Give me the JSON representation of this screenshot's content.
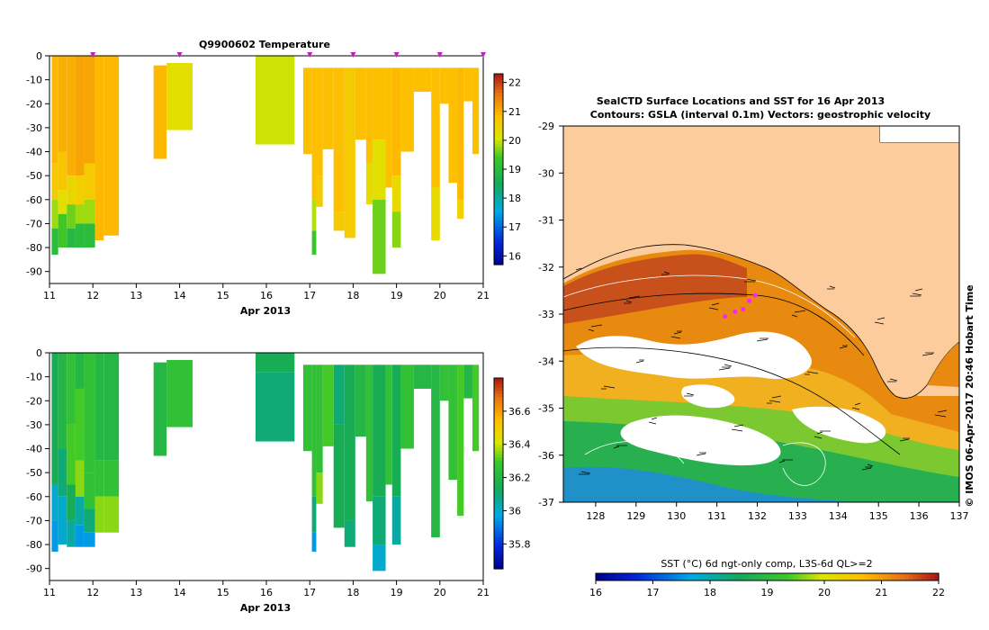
{
  "chart_data": [
    {
      "type": "heatmap",
      "title": "Q9900602  Temperature",
      "xlabel": "Apr 2013",
      "ylabel": "",
      "xlim": [
        11,
        21
      ],
      "ylim": [
        -95,
        0
      ],
      "xticks": [
        "11",
        "12",
        "13",
        "14",
        "15",
        "16",
        "17",
        "18",
        "19",
        "20",
        "21"
      ],
      "yticks": [
        "0",
        "-10",
        "-20",
        "-30",
        "-40",
        "-50",
        "-60",
        "-70",
        "-80",
        "-90"
      ],
      "colorbar": {
        "min": 15.7,
        "max": 22.3,
        "ticks": [
          "22",
          "21",
          "20",
          "19",
          "18",
          "17",
          "16"
        ]
      },
      "markers_x": [
        12.0,
        14.0,
        17.0,
        18.0,
        19.0,
        20.0,
        21.0
      ],
      "profiles": [
        {
          "x0": 11.05,
          "x1": 11.2,
          "bottom": -83,
          "layers": [
            [
              0,
              -45,
              20.9
            ],
            [
              -45,
              -60,
              20.6
            ],
            [
              -60,
              -72,
              19.8
            ],
            [
              -72,
              -83,
              19.0
            ]
          ]
        },
        {
          "x0": 11.2,
          "x1": 11.4,
          "bottom": -80,
          "layers": [
            [
              0,
              -40,
              21.0
            ],
            [
              -40,
              -56,
              20.7
            ],
            [
              -56,
              -66,
              20.2
            ],
            [
              -66,
              -80,
              19.4
            ]
          ]
        },
        {
          "x0": 11.4,
          "x1": 11.6,
          "bottom": -80,
          "layers": [
            [
              0,
              -50,
              21.0
            ],
            [
              -50,
              -62,
              20.4
            ],
            [
              -62,
              -72,
              19.6
            ],
            [
              -72,
              -80,
              18.9
            ]
          ]
        },
        {
          "x0": 11.6,
          "x1": 11.8,
          "bottom": -80,
          "layers": [
            [
              0,
              -50,
              21.1
            ],
            [
              -50,
              -62,
              20.5
            ],
            [
              -62,
              -70,
              19.8
            ],
            [
              -70,
              -80,
              19.0
            ]
          ]
        },
        {
          "x0": 11.8,
          "x1": 12.05,
          "bottom": -80,
          "layers": [
            [
              0,
              -45,
              21.1
            ],
            [
              -45,
              -60,
              20.6
            ],
            [
              -60,
              -70,
              19.8
            ],
            [
              -70,
              -80,
              19.0
            ]
          ]
        },
        {
          "x0": 12.05,
          "x1": 12.25,
          "bottom": -77,
          "layers": [
            [
              0,
              -77,
              20.9
            ]
          ]
        },
        {
          "x0": 12.25,
          "x1": 12.6,
          "bottom": -75,
          "layers": [
            [
              0,
              -75,
              20.9
            ]
          ]
        },
        {
          "x0": 13.4,
          "x1": 13.7,
          "bottom": -43,
          "layers": [
            [
              -4,
              -43,
              20.9
            ]
          ]
        },
        {
          "x0": 13.7,
          "x1": 14.3,
          "bottom": -31,
          "layers": [
            [
              -3,
              -31,
              20.2
            ]
          ]
        },
        {
          "x0": 15.75,
          "x1": 16.65,
          "bottom": -37,
          "layers": [
            [
              0,
              -37,
              20.0
            ]
          ]
        },
        {
          "x0": 16.85,
          "x1": 17.05,
          "bottom": -41,
          "layers": [
            [
              -5,
              -41,
              20.8
            ]
          ]
        },
        {
          "x0": 17.05,
          "x1": 17.15,
          "bottom": -83,
          "layers": [
            [
              -5,
              -60,
              20.8
            ],
            [
              -60,
              -73,
              19.9
            ],
            [
              -73,
              -83,
              19.3
            ]
          ]
        },
        {
          "x0": 17.15,
          "x1": 17.3,
          "bottom": -63,
          "layers": [
            [
              -5,
              -50,
              20.8
            ],
            [
              -50,
              -63,
              20.6
            ]
          ]
        },
        {
          "x0": 17.3,
          "x1": 17.55,
          "bottom": -39,
          "layers": [
            [
              -5,
              -39,
              20.8
            ]
          ]
        },
        {
          "x0": 17.55,
          "x1": 17.8,
          "bottom": -73,
          "layers": [
            [
              -5,
              -65,
              20.8
            ],
            [
              -65,
              -73,
              20.6
            ]
          ]
        },
        {
          "x0": 17.8,
          "x1": 18.05,
          "bottom": -76,
          "layers": [
            [
              -5,
              -76,
              20.6
            ]
          ]
        },
        {
          "x0": 18.05,
          "x1": 18.3,
          "bottom": -35,
          "layers": [
            [
              -5,
              -35,
              20.8
            ]
          ]
        },
        {
          "x0": 18.3,
          "x1": 18.45,
          "bottom": -62,
          "layers": [
            [
              -5,
              -45,
              20.8
            ],
            [
              -45,
              -62,
              20.3
            ]
          ]
        },
        {
          "x0": 18.45,
          "x1": 18.75,
          "bottom": -91,
          "layers": [
            [
              -5,
              -35,
              20.8
            ],
            [
              -35,
              -60,
              20.2
            ],
            [
              -60,
              -91,
              19.6
            ]
          ]
        },
        {
          "x0": 18.75,
          "x1": 18.9,
          "bottom": -55,
          "layers": [
            [
              -5,
              -55,
              20.8
            ]
          ]
        },
        {
          "x0": 18.9,
          "x1": 19.1,
          "bottom": -80,
          "layers": [
            [
              -5,
              -50,
              20.9
            ],
            [
              -50,
              -65,
              20.3
            ],
            [
              -65,
              -80,
              19.7
            ]
          ]
        },
        {
          "x0": 19.1,
          "x1": 19.4,
          "bottom": -40,
          "layers": [
            [
              -5,
              -40,
              20.8
            ]
          ]
        },
        {
          "x0": 19.4,
          "x1": 19.8,
          "bottom": -15,
          "layers": [
            [
              -5,
              -15,
              20.8
            ]
          ]
        },
        {
          "x0": 19.8,
          "x1": 20.0,
          "bottom": -77,
          "layers": [
            [
              -5,
              -55,
              20.8
            ],
            [
              -55,
              -77,
              20.3
            ]
          ]
        },
        {
          "x0": 20.0,
          "x1": 20.2,
          "bottom": -20,
          "layers": [
            [
              -5,
              -20,
              20.8
            ]
          ]
        },
        {
          "x0": 20.2,
          "x1": 20.4,
          "bottom": -53,
          "layers": [
            [
              -5,
              -53,
              20.8
            ]
          ]
        },
        {
          "x0": 20.4,
          "x1": 20.55,
          "bottom": -68,
          "layers": [
            [
              -5,
              -60,
              20.9
            ],
            [
              -60,
              -68,
              20.5
            ]
          ]
        },
        {
          "x0": 20.55,
          "x1": 20.75,
          "bottom": -19,
          "layers": [
            [
              -5,
              -19,
              20.8
            ]
          ]
        },
        {
          "x0": 20.75,
          "x1": 20.9,
          "bottom": -41,
          "layers": [
            [
              -5,
              -41,
              20.8
            ]
          ]
        }
      ]
    },
    {
      "type": "heatmap",
      "title": "",
      "xlabel": "Apr 2013",
      "xlim": [
        11,
        21
      ],
      "ylim": [
        -95,
        0
      ],
      "xticks": [
        "11",
        "12",
        "13",
        "14",
        "15",
        "16",
        "17",
        "18",
        "19",
        "20",
        "21"
      ],
      "yticks": [
        "0",
        "-10",
        "-20",
        "-30",
        "-40",
        "-50",
        "-60",
        "-70",
        "-80",
        "-90"
      ],
      "colorbar": {
        "min": 35.65,
        "max": 36.8,
        "ticks": [
          "36.6",
          "36.4",
          "36.2",
          "36",
          "35.8"
        ]
      },
      "profiles": [
        {
          "x0": 11.05,
          "x1": 11.2,
          "bottom": -83,
          "layers": [
            [
              0,
              -55,
              36.15
            ],
            [
              -55,
              -70,
              36.0
            ],
            [
              -70,
              -83,
              35.95
            ]
          ]
        },
        {
          "x0": 11.2,
          "x1": 11.4,
          "bottom": -80,
          "layers": [
            [
              0,
              -40,
              36.2
            ],
            [
              -40,
              -60,
              36.1
            ],
            [
              -60,
              -80,
              36.0
            ]
          ]
        },
        {
          "x0": 11.4,
          "x1": 11.6,
          "bottom": -81,
          "layers": [
            [
              0,
              -30,
              36.25
            ],
            [
              -30,
              -55,
              36.3
            ],
            [
              -55,
              -70,
              36.15
            ],
            [
              -70,
              -81,
              36.05
            ]
          ]
        },
        {
          "x0": 11.6,
          "x1": 11.8,
          "bottom": -81,
          "layers": [
            [
              0,
              -15,
              36.2
            ],
            [
              -15,
              -45,
              36.3
            ],
            [
              -45,
              -60,
              36.35
            ],
            [
              -60,
              -72,
              36.05
            ],
            [
              -72,
              -81,
              35.95
            ]
          ]
        },
        {
          "x0": 11.8,
          "x1": 12.05,
          "bottom": -81,
          "layers": [
            [
              0,
              -50,
              36.25
            ],
            [
              -50,
              -65,
              36.25
            ],
            [
              -65,
              -75,
              36.1
            ],
            [
              -75,
              -81,
              35.95
            ]
          ]
        },
        {
          "x0": 12.05,
          "x1": 12.25,
          "bottom": -75,
          "layers": [
            [
              0,
              -45,
              36.2
            ],
            [
              -45,
              -60,
              36.25
            ],
            [
              -60,
              -75,
              36.35
            ]
          ]
        },
        {
          "x0": 12.25,
          "x1": 12.6,
          "bottom": -75,
          "layers": [
            [
              0,
              -45,
              36.2
            ],
            [
              -45,
              -60,
              36.25
            ],
            [
              -60,
              -75,
              36.35
            ]
          ]
        },
        {
          "x0": 13.4,
          "x1": 13.7,
          "bottom": -43,
          "layers": [
            [
              -4,
              -43,
              36.2
            ]
          ]
        },
        {
          "x0": 13.7,
          "x1": 14.3,
          "bottom": -31,
          "layers": [
            [
              -3,
              -31,
              36.25
            ]
          ]
        },
        {
          "x0": 15.75,
          "x1": 16.65,
          "bottom": -37,
          "layers": [
            [
              0,
              -8,
              36.15
            ],
            [
              -8,
              -37,
              36.1
            ]
          ]
        },
        {
          "x0": 16.85,
          "x1": 17.05,
          "bottom": -41,
          "layers": [
            [
              -5,
              -41,
              36.25
            ]
          ]
        },
        {
          "x0": 17.05,
          "x1": 17.15,
          "bottom": -83,
          "layers": [
            [
              -5,
              -60,
              36.25
            ],
            [
              -60,
              -75,
              36.1
            ],
            [
              -75,
              -83,
              35.95
            ]
          ]
        },
        {
          "x0": 17.15,
          "x1": 17.3,
          "bottom": -63,
          "layers": [
            [
              -5,
              -50,
              36.25
            ],
            [
              -50,
              -63,
              36.35
            ]
          ]
        },
        {
          "x0": 17.3,
          "x1": 17.55,
          "bottom": -39,
          "layers": [
            [
              -5,
              -39,
              36.3
            ]
          ]
        },
        {
          "x0": 17.55,
          "x1": 17.8,
          "bottom": -73,
          "layers": [
            [
              -5,
              -30,
              36.1
            ],
            [
              -30,
              -73,
              36.15
            ]
          ]
        },
        {
          "x0": 17.8,
          "x1": 18.05,
          "bottom": -81,
          "layers": [
            [
              -5,
              -70,
              36.15
            ],
            [
              -70,
              -81,
              36.1
            ]
          ]
        },
        {
          "x0": 18.05,
          "x1": 18.3,
          "bottom": -35,
          "layers": [
            [
              -5,
              -35,
              36.2
            ]
          ]
        },
        {
          "x0": 18.3,
          "x1": 18.45,
          "bottom": -62,
          "layers": [
            [
              -5,
              -62,
              36.25
            ]
          ]
        },
        {
          "x0": 18.45,
          "x1": 18.75,
          "bottom": -91,
          "layers": [
            [
              -5,
              -60,
              36.15
            ],
            [
              -60,
              -80,
              36.1
            ],
            [
              -80,
              -91,
              36.0
            ]
          ]
        },
        {
          "x0": 18.75,
          "x1": 18.9,
          "bottom": -55,
          "layers": [
            [
              -5,
              -55,
              36.25
            ]
          ]
        },
        {
          "x0": 18.9,
          "x1": 19.1,
          "bottom": -80,
          "layers": [
            [
              -5,
              -60,
              36.15
            ],
            [
              -60,
              -80,
              36.05
            ]
          ]
        },
        {
          "x0": 19.1,
          "x1": 19.4,
          "bottom": -40,
          "layers": [
            [
              -5,
              -40,
              36.25
            ]
          ]
        },
        {
          "x0": 19.4,
          "x1": 19.8,
          "bottom": -15,
          "layers": [
            [
              -5,
              -15,
              36.2
            ]
          ]
        },
        {
          "x0": 19.8,
          "x1": 20.0,
          "bottom": -77,
          "layers": [
            [
              -5,
              -77,
              36.2
            ]
          ]
        },
        {
          "x0": 20.0,
          "x1": 20.2,
          "bottom": -20,
          "layers": [
            [
              -5,
              -20,
              36.25
            ]
          ]
        },
        {
          "x0": 20.2,
          "x1": 20.4,
          "bottom": -53,
          "layers": [
            [
              -5,
              -53,
              36.25
            ]
          ]
        },
        {
          "x0": 20.4,
          "x1": 20.55,
          "bottom": -68,
          "layers": [
            [
              -5,
              -68,
              36.3
            ]
          ]
        },
        {
          "x0": 20.55,
          "x1": 20.75,
          "bottom": -19,
          "layers": [
            [
              -5,
              -19,
              36.2
            ]
          ]
        },
        {
          "x0": 20.75,
          "x1": 20.9,
          "bottom": -41,
          "layers": [
            [
              -5,
              -41,
              36.3
            ]
          ]
        }
      ]
    },
    {
      "type": "heatmap",
      "title": "SealCTD Surface Locations and SST for 16 Apr 2013",
      "subtitle": "Contours: GSLA (interval 0.1m) Vectors: geostrophic velocity",
      "xlim": [
        127.2,
        137
      ],
      "ylim": [
        -37,
        -29
      ],
      "xticks": [
        "128",
        "129",
        "130",
        "131",
        "132",
        "133",
        "134",
        "135",
        "136",
        "137"
      ],
      "yticks": [
        "-29",
        "-30",
        "-31",
        "-32",
        "-33",
        "-34",
        "-35",
        "-36",
        "-37"
      ],
      "colorbar": {
        "label": "SST (°C) 6d ngt-only comp, L3S-6d QL>=2",
        "min": 16,
        "max": 22,
        "ticks": [
          "16",
          "17",
          "18",
          "19",
          "20",
          "21",
          "22"
        ]
      },
      "side_label": "© IMOS 06-Apr-2017 20:46 Hobart Time",
      "seal_track": [
        [
          131.2,
          -33.05
        ],
        [
          131.45,
          -32.95
        ],
        [
          131.65,
          -32.9
        ],
        [
          131.8,
          -32.72
        ],
        [
          131.95,
          -32.6
        ]
      ]
    }
  ]
}
